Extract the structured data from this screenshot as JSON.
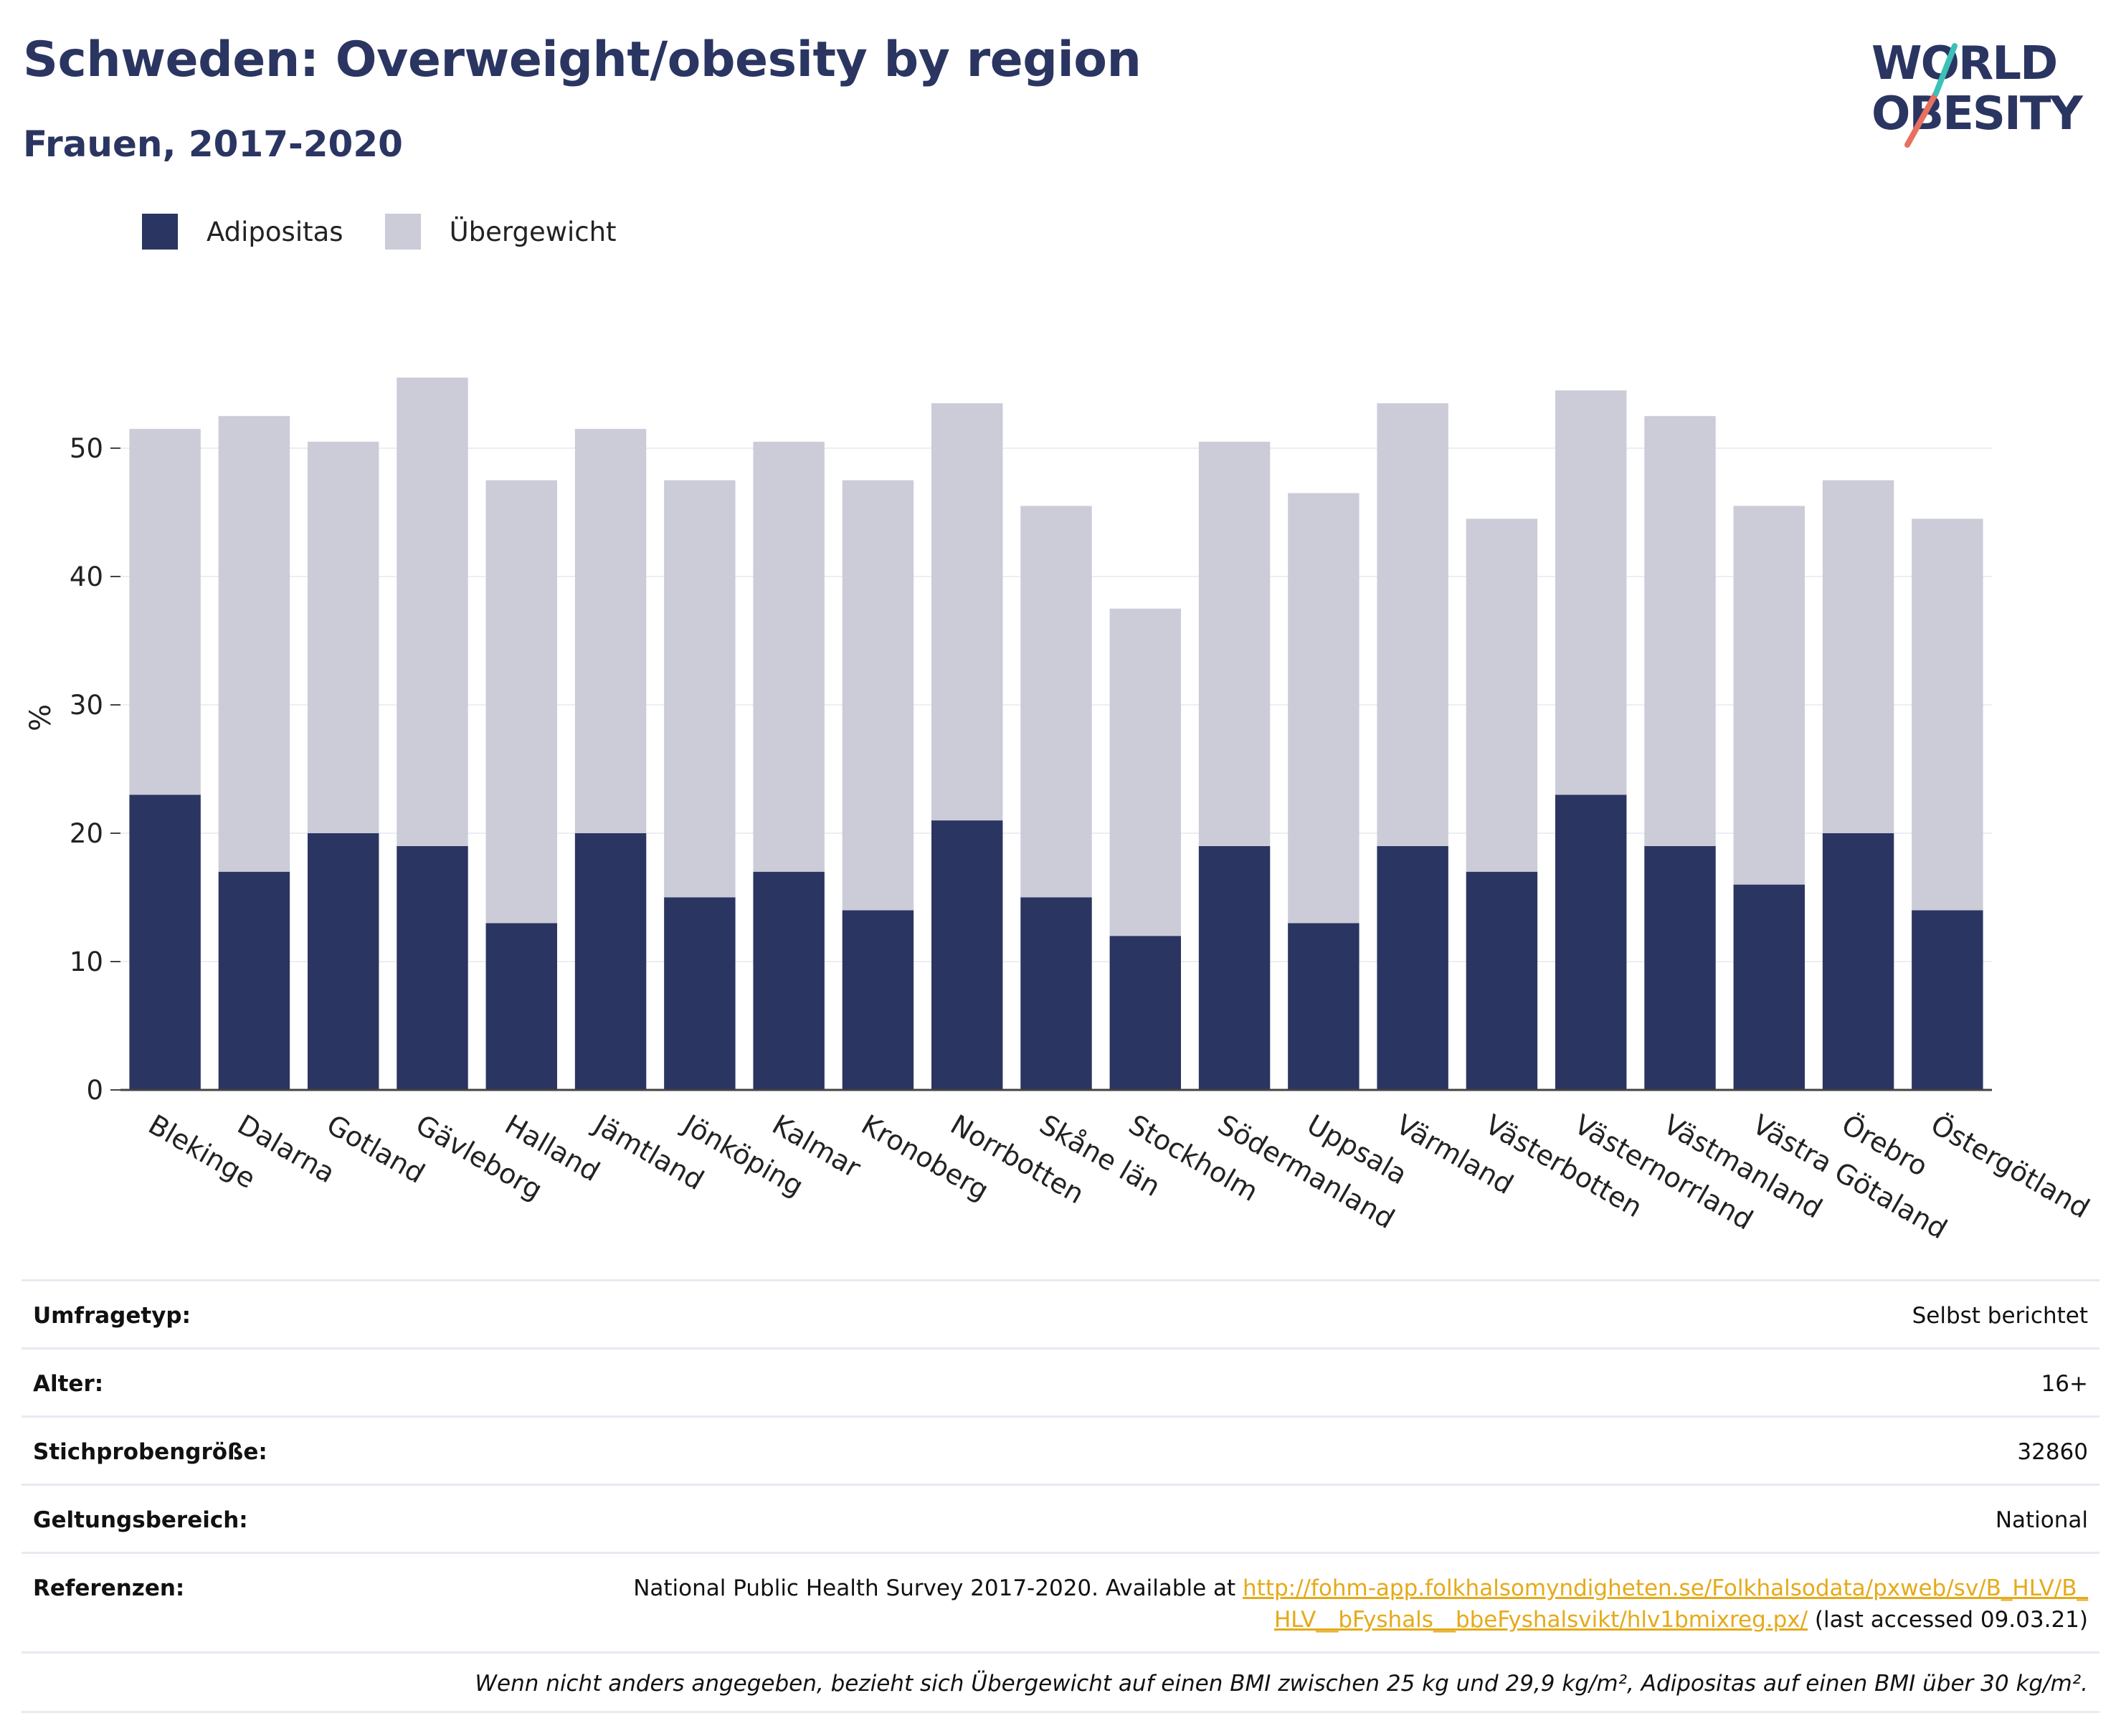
{
  "title": "Schweden: Overweight/obesity by region",
  "subtitle": "Frauen, 2017-2020",
  "logo": {
    "line1": "WORLD",
    "line2": "OBESITY"
  },
  "colors": {
    "obesity": "#2a3561",
    "overweight": "#cbccd8",
    "title": "#2a3561",
    "link": "#e4aa1a",
    "logo_teal": "#3cc1b8",
    "logo_coral": "#e8705f"
  },
  "legend": [
    {
      "label": "Adipositas",
      "color": "#2a3561"
    },
    {
      "label": "Übergewicht",
      "color": "#cbccd8"
    }
  ],
  "chart_data": {
    "type": "bar",
    "stacked": true,
    "title": "Schweden: Overweight/obesity by region",
    "subtitle": "Frauen, 2017-2020",
    "xlabel": "",
    "ylabel": "%",
    "ylim": [
      0,
      58
    ],
    "yticks": [
      0,
      10,
      20,
      30,
      40,
      50
    ],
    "grid": true,
    "legend_position": "top-left",
    "categories": [
      "Blekinge",
      "Dalarna",
      "Gotland",
      "Gävleborg",
      "Halland",
      "Jämtland",
      "Jönköping",
      "Kalmar",
      "Kronoberg",
      "Norrbotten",
      "Skåne län",
      "Stockholm",
      "Södermanland",
      "Uppsala",
      "Värmland",
      "Västerbotten",
      "Västernorrland",
      "Västmanland",
      "Västra Götaland",
      "Örebro",
      "Östergötland"
    ],
    "series": [
      {
        "name": "Adipositas",
        "values": [
          23,
          17,
          20,
          19,
          13,
          20,
          15,
          17,
          14,
          21,
          15,
          12,
          19,
          13,
          19,
          17,
          23,
          19,
          16,
          20,
          14
        ]
      },
      {
        "name": "Übergewicht",
        "values": [
          28.5,
          35.5,
          30.5,
          36.5,
          34.5,
          31.5,
          32.5,
          33.5,
          33.5,
          32.5,
          30.5,
          25.5,
          31.5,
          33.5,
          34.5,
          27.5,
          31.5,
          33.5,
          29.5,
          27.5,
          30.5
        ]
      }
    ]
  },
  "info": {
    "survey_type": {
      "label": "Umfragetyp:",
      "value": "Selbst berichtet"
    },
    "age": {
      "label": "Alter:",
      "value": "16+"
    },
    "sample_size": {
      "label": "Stichprobengröße:",
      "value": "32860"
    },
    "scope": {
      "label": "Geltungsbereich:",
      "value": "National"
    },
    "references": {
      "label": "Referenzen:",
      "text_before": "National Public Health Survey 2017-2020. Available at ",
      "link": "http://fohm-app.folkhalsomyndigheten.se/Folkhalsodata/pxweb/sv/B_HLV/B_HLV__bFyshals__bbeFyshalsvikt/hlv1bmixreg.px/",
      "text_after": " (last accessed 09.03.21)"
    },
    "note": "Wenn nicht anders angegeben, bezieht sich Übergewicht auf einen BMI zwischen 25 kg und 29,9 kg/m², Adipositas auf einen BMI über 30 kg/m²."
  }
}
